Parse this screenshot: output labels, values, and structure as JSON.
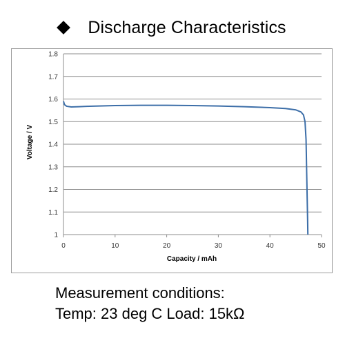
{
  "header": {
    "title": "Discharge Characteristics",
    "bullet_icon": "diamond-bullet-icon"
  },
  "conditions": {
    "line1": "Measurement conditions:",
    "line2": "Temp: 23 deg C  Load: 15kΩ"
  },
  "chart_data": {
    "type": "line",
    "xlabel": "Capacity  /  mAh",
    "ylabel": "Voltage  /  V",
    "xlim": [
      0,
      50
    ],
    "ylim": [
      1,
      1.8
    ],
    "xticks": [
      "0",
      "10",
      "20",
      "30",
      "40",
      "50"
    ],
    "yticks": [
      "1",
      "1.1",
      "1.2",
      "1.3",
      "1.4",
      "1.5",
      "1.6",
      "1.7",
      "1.8"
    ],
    "grid": true,
    "line_color": "#3c6ea8",
    "series": [
      {
        "x": [
          0,
          0.2,
          0.6,
          1.5,
          3,
          5,
          10,
          15,
          20,
          25,
          30,
          35,
          40,
          43,
          45,
          46,
          46.5,
          46.8,
          47,
          47.1,
          47.2,
          47.3,
          47.35
        ],
        "y": [
          1.59,
          1.575,
          1.568,
          1.565,
          1.566,
          1.568,
          1.571,
          1.572,
          1.572,
          1.571,
          1.569,
          1.566,
          1.562,
          1.558,
          1.552,
          1.543,
          1.53,
          1.5,
          1.42,
          1.3,
          1.18,
          1.07,
          1.0
        ]
      }
    ]
  }
}
